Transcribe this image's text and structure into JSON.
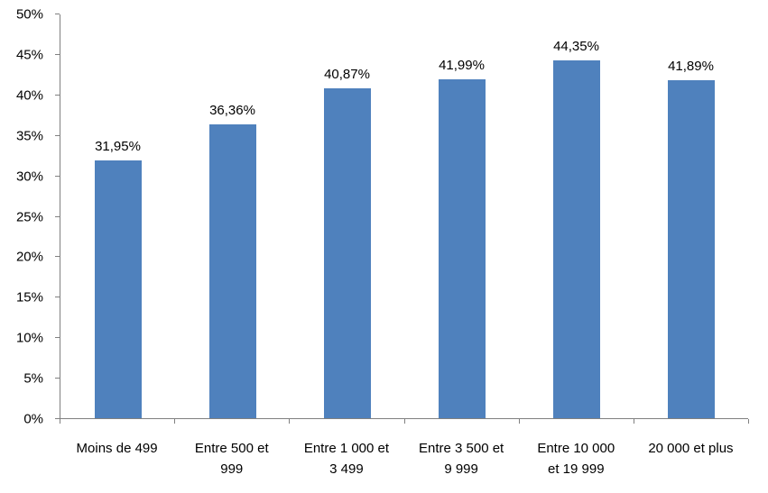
{
  "chart_data": {
    "type": "bar",
    "title": "",
    "xlabel": "",
    "ylabel": "",
    "categories": [
      "Moins de 499",
      "Entre 500 et 999",
      "Entre 1 000 et 3 499",
      "Entre 3 500 et 9 999",
      "Entre 10 000 et 19 999",
      "20 000 et plus"
    ],
    "category_labels_wrapped": [
      [
        "Moins de 499"
      ],
      [
        "Entre 500 et",
        "999"
      ],
      [
        "Entre 1 000 et",
        "3 499"
      ],
      [
        "Entre 3 500 et",
        "9 999"
      ],
      [
        "Entre 10 000",
        "et 19 999"
      ],
      [
        "20 000 et plus"
      ]
    ],
    "values": [
      31.95,
      36.36,
      40.87,
      41.99,
      44.35,
      41.89
    ],
    "value_labels": [
      "31,95%",
      "36,36%",
      "40,87%",
      "41,99%",
      "44,35%",
      "41,89%"
    ],
    "ylim": [
      0,
      50
    ],
    "y_tick_step": 5,
    "y_ticks": [
      "0%",
      "5%",
      "10%",
      "15%",
      "20%",
      "25%",
      "30%",
      "35%",
      "40%",
      "45%",
      "50%"
    ],
    "bar_color": "#4F81BD",
    "axis_color": "#808080",
    "grid": false,
    "legend": false
  }
}
